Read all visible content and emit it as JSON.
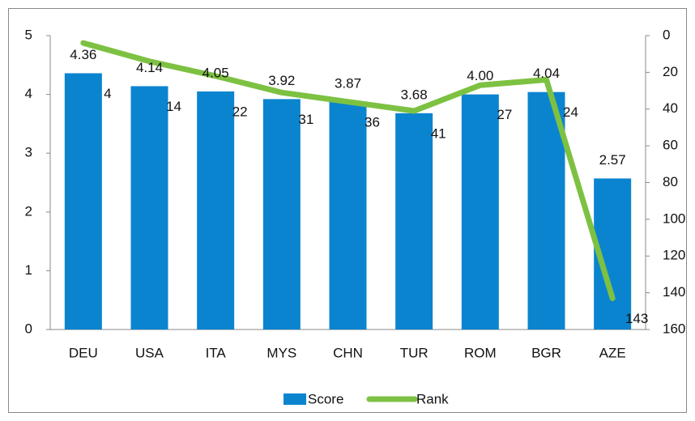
{
  "chart_data": {
    "type": "bar-line",
    "categories": [
      "DEU",
      "USA",
      "ITA",
      "MYS",
      "CHN",
      "TUR",
      "ROM",
      "BGR",
      "AZE"
    ],
    "series": [
      {
        "name": "Score",
        "type": "bar",
        "color": "#0b84cf",
        "values": [
          4.36,
          4.14,
          4.05,
          3.92,
          3.87,
          3.68,
          4.0,
          4.04,
          2.57
        ],
        "value_labels": [
          "4.36",
          "4.14",
          "4.05",
          "3.92",
          "3.87",
          "3.68",
          "4.00",
          "4.04",
          "2.57"
        ]
      },
      {
        "name": "Rank",
        "type": "line",
        "axis": "y2",
        "color": "#7dc142",
        "values": [
          4,
          14,
          22,
          31,
          36,
          41,
          27,
          24,
          143
        ]
      }
    ],
    "ylim": [
      0,
      5
    ],
    "yticks": [
      0,
      1,
      2,
      3,
      4,
      5
    ],
    "y2lim": [
      0,
      160
    ],
    "y2ticks": [
      0,
      20,
      40,
      60,
      80,
      100,
      120,
      140,
      160
    ],
    "y2_inverted": true,
    "legend": "bottom"
  }
}
